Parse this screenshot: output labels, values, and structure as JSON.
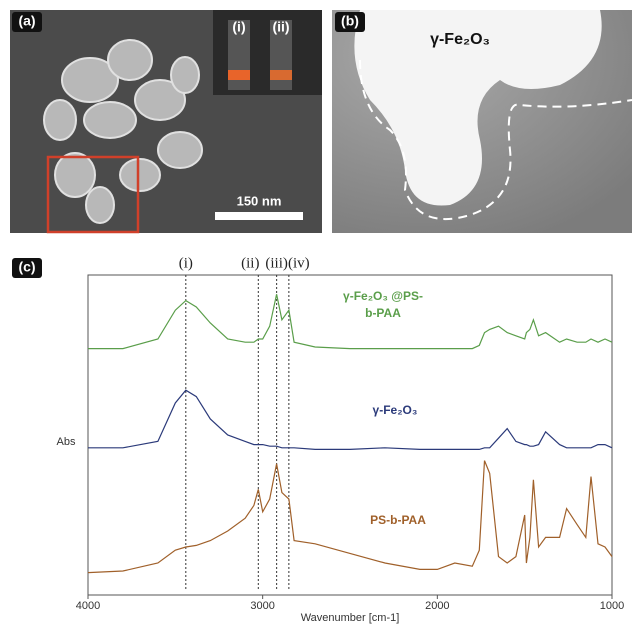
{
  "panels": {
    "a": {
      "label": "(a)",
      "inset_labels": [
        "(i)",
        "(ii)"
      ],
      "scale_bar": "150 nm"
    },
    "b": {
      "label": "(b)",
      "title": "γ-Fe₂O₃"
    },
    "c": {
      "label": "(c)"
    }
  },
  "chart_data": {
    "type": "line",
    "xlabel": "Wavenumber [cm-1]",
    "ylabel": "Abs",
    "xlim": [
      4000,
      1000
    ],
    "xticks": [
      4000,
      3000,
      2000,
      1000
    ],
    "ylim": [
      0,
      100
    ],
    "x": [
      4000,
      3800,
      3600,
      3500,
      3440,
      3380,
      3300,
      3200,
      3100,
      3050,
      3025,
      3000,
      2960,
      2920,
      2890,
      2850,
      2820,
      2700,
      2500,
      2300,
      2100,
      2000,
      1900,
      1800,
      1760,
      1730,
      1700,
      1650,
      1600,
      1550,
      1500,
      1490,
      1470,
      1450,
      1420,
      1380,
      1300,
      1260,
      1200,
      1150,
      1120,
      1080,
      1040,
      1000
    ],
    "series": [
      {
        "name": "γ-Fe₂O₃ @PS-b-PAA",
        "color": "#5a9e4a",
        "values": [
          77,
          77,
          80,
          89,
          92,
          90,
          85,
          80,
          79,
          79,
          80,
          80,
          84,
          94,
          86,
          89,
          79,
          77.5,
          77,
          77,
          77,
          77,
          77,
          77,
          78,
          82,
          83,
          84,
          82,
          81,
          80,
          82,
          83,
          86,
          81,
          82,
          79,
          80,
          79,
          79,
          80,
          79,
          80,
          79
        ]
      },
      {
        "name": "γ-Fe₂O₃",
        "color": "#2b3a7a",
        "values": [
          46,
          46,
          48,
          60,
          64,
          62,
          55,
          50,
          48,
          47,
          47,
          47,
          46.5,
          46.5,
          46,
          46,
          46,
          45.5,
          45.5,
          46,
          45.5,
          45.5,
          45.5,
          45.5,
          45.5,
          46,
          46,
          49,
          52,
          48,
          47,
          47,
          46.5,
          46.5,
          47,
          51,
          47,
          46,
          46,
          46,
          46,
          47,
          47,
          46
        ]
      },
      {
        "name": "PS-b-PAA",
        "color": "#a0602a",
        "values": [
          7,
          7.5,
          10,
          14,
          15,
          15.5,
          17,
          20,
          24,
          28,
          33,
          26,
          30,
          41,
          32,
          30,
          17,
          16,
          13,
          10,
          8,
          8,
          10,
          9,
          14,
          42,
          38,
          12,
          10,
          12,
          25,
          10,
          18,
          36,
          15,
          18,
          18,
          27,
          22,
          18,
          37,
          16,
          15,
          12
        ]
      }
    ],
    "peaks": [
      {
        "x": 3440,
        "label": "(i)"
      },
      {
        "x": 3025,
        "label": "(ii)"
      },
      {
        "x": 2920,
        "label": "(iii)"
      },
      {
        "x": 2850,
        "label": "(iv)"
      }
    ]
  }
}
